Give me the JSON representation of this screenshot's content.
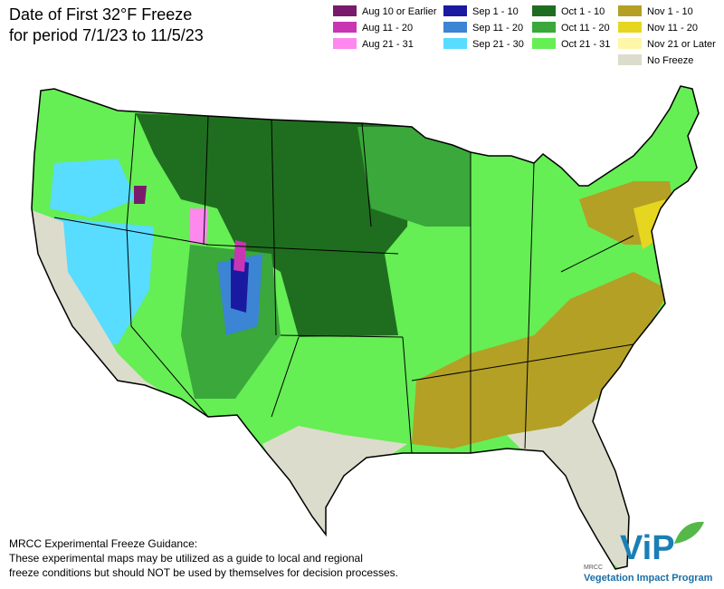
{
  "header": {
    "title_line1": "Date of First 32°F Freeze",
    "title_line2": "for period 7/1/23 to 11/5/23"
  },
  "legend": [
    {
      "label": "Aug 10 or Earlier",
      "color": "#7a1a6c"
    },
    {
      "label": "Aug 11 - 20",
      "color": "#c836b4"
    },
    {
      "label": "Aug 21 - 31",
      "color": "#ff88ee"
    },
    {
      "label": "Sep 1 - 10",
      "color": "#1a1aa0"
    },
    {
      "label": "Sep 11 - 20",
      "color": "#3c84d4"
    },
    {
      "label": "Sep 21 - 30",
      "color": "#58dcff"
    },
    {
      "label": "Oct 1 - 10",
      "color": "#1f6e1f"
    },
    {
      "label": "Oct 11 - 20",
      "color": "#3aa83a"
    },
    {
      "label": "Oct 21 - 31",
      "color": "#66ee55"
    },
    {
      "label": "Nov 1 - 10",
      "color": "#b3a025"
    },
    {
      "label": "Nov 11 - 20",
      "color": "#e6d620"
    },
    {
      "label": "Nov 21 or Later",
      "color": "#fff6a8"
    },
    {
      "label": "No Freeze",
      "color": "#dcdccc"
    }
  ],
  "footer": {
    "line1": "MRCC Experimental Freeze Guidance:",
    "line2": "These experimental maps may be utilized as a guide to local and regional",
    "line3": "freeze conditions but should NOT be used by themselves for decision processes."
  },
  "logo": {
    "mark": "ViP",
    "org": "MRCC",
    "name": "Vegetation Impact Program"
  }
}
